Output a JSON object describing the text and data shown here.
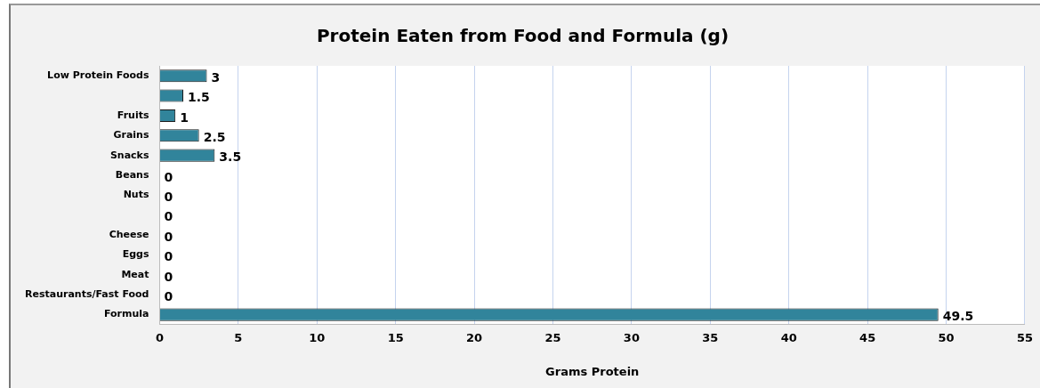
{
  "chart_data": {
    "type": "bar",
    "orientation": "horizontal",
    "title": "Protein Eaten from Food and Formula (g)",
    "xlabel": "Grams Protein",
    "categories": [
      "Low Protein Foods",
      null,
      "Fruits",
      "Grains",
      "Snacks",
      "Beans",
      "Nuts",
      null,
      "Cheese",
      "Eggs",
      "Meat",
      "Restaurants/Fast Food",
      "Formula"
    ],
    "values": [
      3,
      1.5,
      1,
      2.5,
      3.5,
      0,
      0,
      0,
      0,
      0,
      0,
      0,
      49.5
    ],
    "color": "#31849b",
    "xlim": [
      0,
      55
    ],
    "xticks": [
      0,
      5,
      10,
      15,
      20,
      25,
      30,
      35,
      40,
      45,
      50,
      55
    ],
    "grid": "x",
    "data_labels": true,
    "legend": false
  }
}
